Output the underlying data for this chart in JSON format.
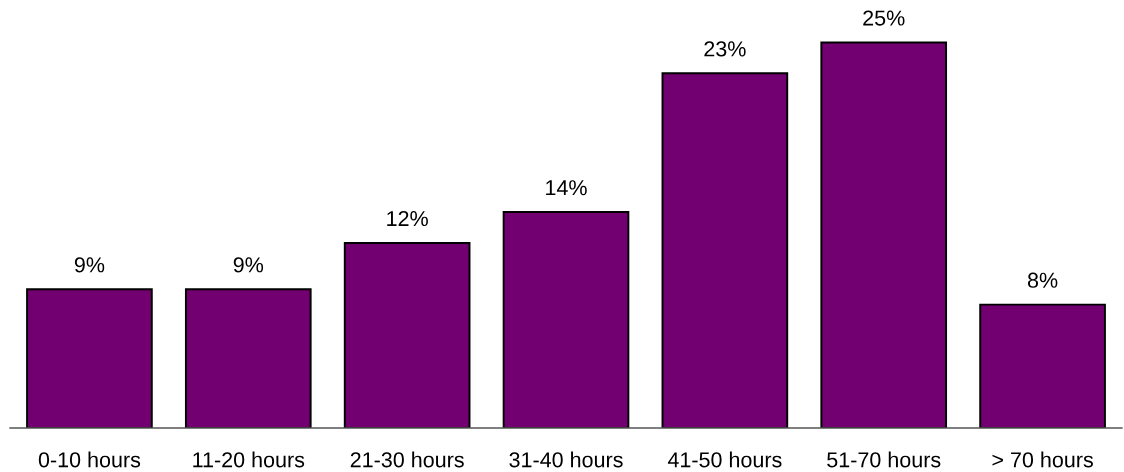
{
  "chart_data": {
    "type": "bar",
    "categories": [
      "0-10 hours",
      "11-20 hours",
      "21-30 hours",
      "31-40 hours",
      "41-50 hours",
      "51-70 hours",
      "> 70 hours"
    ],
    "values": [
      9,
      9,
      12,
      14,
      23,
      25,
      8
    ],
    "value_labels": [
      "9%",
      "9%",
      "12%",
      "14%",
      "23%",
      "25%",
      "8%"
    ],
    "color": "#730070"
  }
}
